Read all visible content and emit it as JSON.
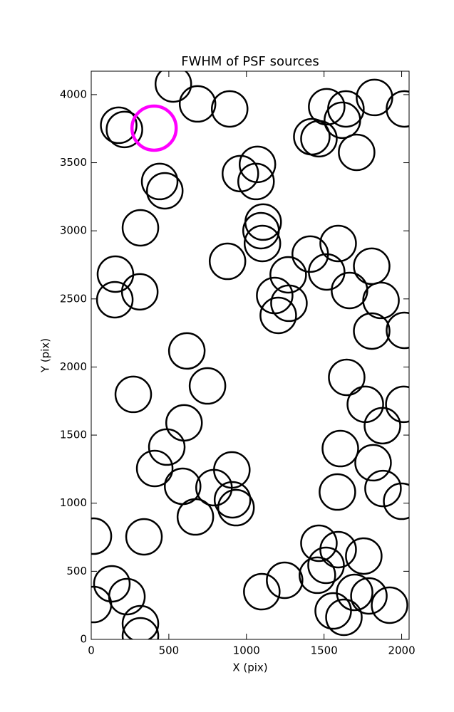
{
  "chart_data": {
    "type": "scatter",
    "title": "FWHM of PSF sources",
    "xlabel": "X (pix)",
    "ylabel": "Y (pix)",
    "xlim": [
      0,
      2048
    ],
    "ylim": [
      0,
      4172
    ],
    "xticks": [
      0,
      500,
      1000,
      1500,
      2000
    ],
    "yticks": [
      0,
      500,
      1000,
      1500,
      2000,
      2500,
      3000,
      3500,
      4000
    ],
    "series": [
      {
        "color": "#000000",
        "x": [
          529,
          685,
          892,
          177,
          214,
          1517,
          1641,
          1825,
          2018,
          1618,
          1421,
          1467,
          1710,
          1071,
          961,
          1062,
          441,
          474,
          1108,
          1094,
          1103,
          317,
          1591,
          1411,
          878,
          156,
          1269,
          1517,
          1807,
          313,
          152,
          1182,
          1274,
          1664,
          1867,
          1205,
          1807,
          2018,
          616,
          1646,
          749,
          271,
          1766,
          2014,
          598,
          1876,
          487,
          1605,
          409,
          906,
          1816,
          589,
          791,
          1586,
          1880,
          910,
          933,
          2000,
          671,
          14,
          340,
          1467,
          1591,
          1756,
          1513,
          1457,
          133,
          1246,
          230,
          14,
          1099,
          1697,
          1789,
          1922,
          1559,
          1628,
          317,
          317
        ],
        "y": [
          4078,
          3932,
          3895,
          3775,
          3744,
          3911,
          3895,
          3979,
          3895,
          3812,
          3691,
          3676,
          3576,
          3488,
          3420,
          3362,
          3362,
          3294,
          3064,
          3001,
          2907,
          3022,
          2907,
          2829,
          2776,
          2682,
          2677,
          2698,
          2740,
          2552,
          2494,
          2525,
          2468,
          2562,
          2489,
          2379,
          2264,
          2269,
          2118,
          1924,
          1861,
          1799,
          1726,
          1726,
          1590,
          1569,
          1412,
          1401,
          1255,
          1244,
          1297,
          1124,
          1114,
          1082,
          1108,
          1025,
          967,
          1014,
          899,
          758,
          753,
          706,
          659,
          612,
          544,
          471,
          408,
          434,
          314,
          256,
          350,
          345,
          319,
          251,
          209,
          162,
          115,
          26
        ]
      },
      {
        "color": "#ff00ff",
        "x": [
          405
        ],
        "y": [
          3754
        ]
      }
    ]
  }
}
